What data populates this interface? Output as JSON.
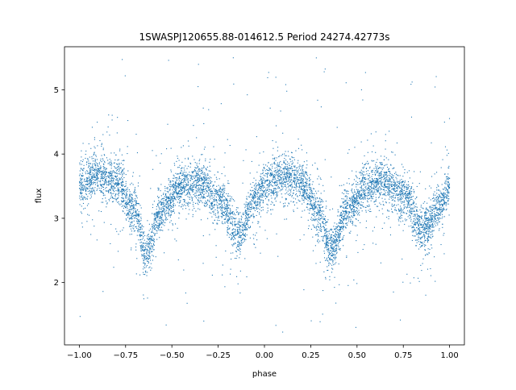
{
  "chart_data": {
    "type": "scatter",
    "title": "1SWASPJ120655.88-014612.5 Period 24274.42773s",
    "xlabel": "phase",
    "ylabel": "flux",
    "xlim": [
      -1.08,
      1.08
    ],
    "ylim": [
      1.03,
      5.67
    ],
    "xticks": [
      -1.0,
      -0.75,
      -0.5,
      -0.25,
      0.0,
      0.25,
      0.5,
      0.75,
      1.0
    ],
    "xtick_labels": [
      "−1.00",
      "−0.75",
      "−0.50",
      "−0.25",
      "0.00",
      "0.25",
      "0.50",
      "0.75",
      "1.00"
    ],
    "yticks": [
      2,
      3,
      4,
      5
    ],
    "ytick_labels": [
      "2",
      "3",
      "4",
      "5"
    ],
    "grid": false,
    "marker_color": "#1f77b4",
    "series": [
      {
        "phase_range": [
          -1.0,
          1.0
        ],
        "trend": {
          "phase": [
            -1.0,
            -0.9,
            -0.8,
            -0.7,
            -0.64,
            -0.55,
            -0.45,
            -0.35,
            -0.25,
            -0.14,
            -0.05,
            0.0,
            0.1,
            0.2,
            0.3,
            0.36,
            0.45,
            0.55,
            0.65,
            0.75,
            0.86,
            0.95,
            1.0
          ],
          "flux": [
            3.55,
            3.68,
            3.58,
            3.1,
            2.45,
            3.15,
            3.5,
            3.55,
            3.3,
            2.75,
            3.3,
            3.5,
            3.68,
            3.55,
            3.05,
            2.5,
            3.15,
            3.5,
            3.58,
            3.35,
            2.8,
            3.2,
            3.48
          ]
        },
        "scatter_sigma": 0.17,
        "outlier_range": [
          1.2,
          5.5
        ]
      }
    ]
  }
}
